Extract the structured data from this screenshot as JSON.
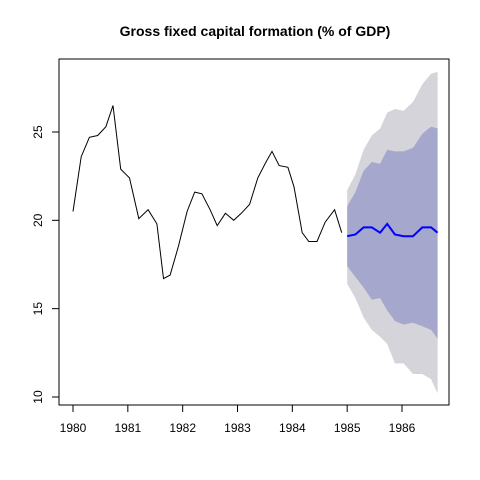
{
  "chart_data": {
    "type": "line",
    "title": "Gross fixed capital formation (% of GDP)",
    "xlabel": "",
    "ylabel": "",
    "xlim": [
      1980,
      1986.7
    ],
    "ylim": [
      10,
      28.6
    ],
    "x_ticks": [
      1980,
      1981,
      1982,
      1983,
      1984,
      1985,
      1986
    ],
    "x_tick_labels": [
      "1980",
      "1981",
      "1982",
      "1983",
      "1984",
      "1985",
      "1986"
    ],
    "y_ticks": [
      10,
      15,
      20,
      25
    ],
    "y_tick_labels": [
      "10",
      "15",
      "20",
      "25"
    ],
    "grid": false,
    "colors": {
      "history": "#000000",
      "forecast": "#0000ff",
      "band80": "#a5a8cc",
      "band95": "#d4d4da"
    },
    "history": {
      "x": [
        1980.0,
        1980.15,
        1980.3,
        1980.45,
        1980.6,
        1980.73,
        1980.87,
        1981.03,
        1981.2,
        1981.37,
        1981.53,
        1981.65,
        1981.77,
        1981.92,
        1982.08,
        1982.22,
        1982.35,
        1982.5,
        1982.63,
        1982.78,
        1982.93,
        1983.07,
        1983.22,
        1983.37,
        1983.52,
        1983.63,
        1983.76,
        1983.92,
        1984.03,
        1984.18,
        1984.3,
        1984.45,
        1984.6,
        1984.77,
        1984.9
      ],
      "y": [
        20.5,
        23.6,
        24.7,
        24.8,
        25.3,
        26.5,
        22.9,
        22.4,
        20.1,
        20.6,
        19.8,
        16.7,
        16.9,
        18.5,
        20.5,
        21.6,
        21.5,
        20.6,
        19.7,
        20.4,
        20.0,
        20.4,
        20.9,
        22.4,
        23.3,
        23.9,
        23.1,
        23.0,
        21.9,
        19.3,
        18.8,
        18.8,
        19.9,
        20.6,
        19.3
      ]
    },
    "forecast": {
      "x": [
        1985.0,
        1985.15,
        1985.3,
        1985.45,
        1985.6,
        1985.73,
        1985.87,
        1986.03,
        1986.2,
        1986.37,
        1986.53,
        1986.65
      ],
      "mean": [
        19.1,
        19.2,
        19.6,
        19.6,
        19.3,
        19.8,
        19.2,
        19.1,
        19.1,
        19.6,
        19.6,
        19.3
      ],
      "lo80": [
        17.4,
        16.8,
        16.2,
        15.5,
        15.6,
        14.9,
        14.3,
        14.1,
        14.2,
        14.0,
        13.8,
        13.3
      ],
      "hi80": [
        20.8,
        21.6,
        22.8,
        23.3,
        23.2,
        24.0,
        23.9,
        23.9,
        24.1,
        24.9,
        25.3,
        25.2
      ],
      "lo95": [
        16.4,
        15.6,
        14.5,
        13.8,
        13.4,
        13.0,
        11.9,
        11.9,
        11.3,
        11.3,
        11.0,
        10.2
      ],
      "hi95": [
        21.7,
        22.6,
        24.0,
        24.8,
        25.2,
        26.1,
        26.3,
        26.2,
        26.7,
        27.7,
        28.3,
        28.4
      ]
    }
  }
}
